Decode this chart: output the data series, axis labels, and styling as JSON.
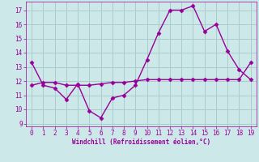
{
  "x": [
    0,
    1,
    2,
    3,
    4,
    5,
    6,
    7,
    8,
    9,
    10,
    11,
    12,
    13,
    14,
    15,
    16,
    17,
    18,
    19
  ],
  "y_jagged": [
    13.3,
    11.7,
    11.5,
    10.7,
    11.8,
    9.9,
    9.4,
    10.8,
    11.0,
    11.7,
    13.5,
    15.4,
    17.0,
    17.0,
    17.3,
    15.5,
    16.0,
    14.1,
    12.8,
    12.1
  ],
  "y_smooth": [
    11.7,
    11.9,
    11.9,
    11.7,
    11.7,
    11.7,
    11.8,
    11.9,
    11.9,
    12.0,
    12.1,
    12.1,
    12.1,
    12.1,
    12.1,
    12.1,
    12.1,
    12.1,
    12.1,
    13.3
  ],
  "line_color": "#990099",
  "bg_color": "#cce8e8",
  "grid_color": "#aacccc",
  "xlabel": "Windchill (Refroidissement éolien,°C)",
  "ylim": [
    8.8,
    17.6
  ],
  "xlim": [
    -0.5,
    19.5
  ],
  "yticks": [
    9,
    10,
    11,
    12,
    13,
    14,
    15,
    16,
    17
  ],
  "xticks": [
    0,
    1,
    2,
    3,
    4,
    5,
    6,
    7,
    8,
    9,
    10,
    11,
    12,
    13,
    14,
    15,
    16,
    17,
    18,
    19
  ],
  "marker": "D",
  "markersize": 2.5,
  "linewidth": 1.0
}
